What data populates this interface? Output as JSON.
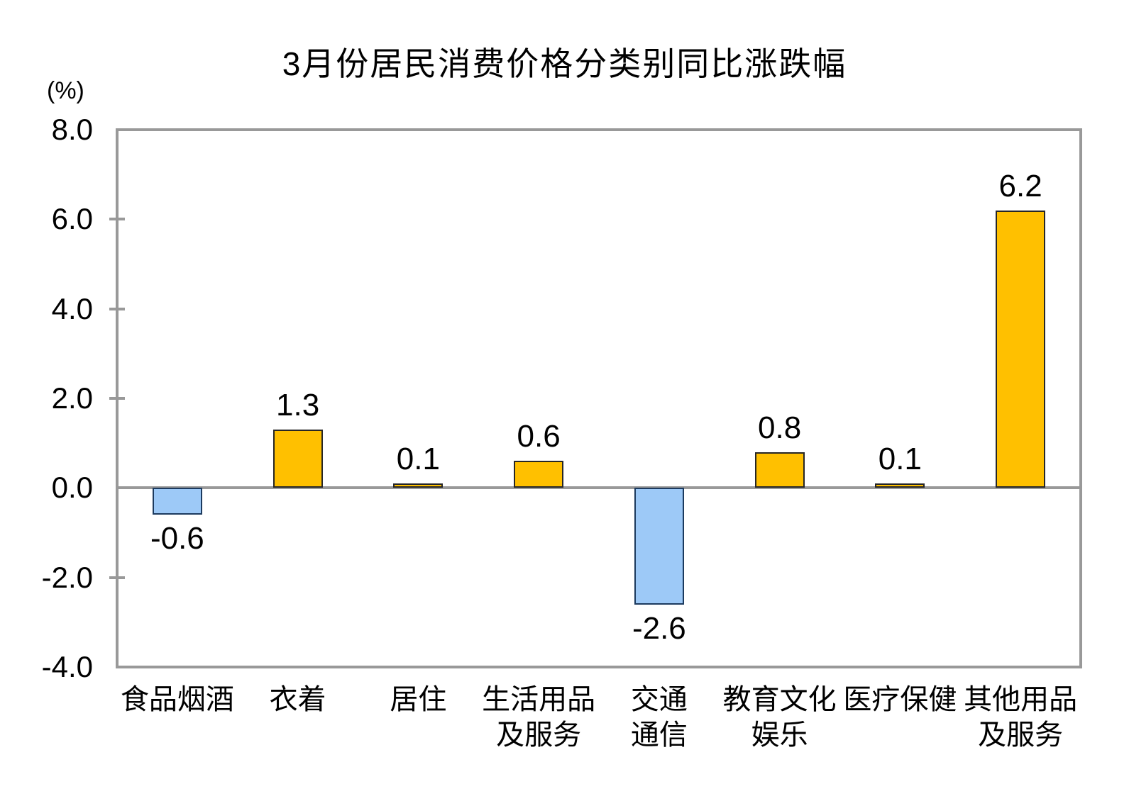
{
  "page": {
    "background": "#ffffff"
  },
  "chart_data": {
    "type": "bar",
    "title": "3月份居民消费价格分类别同比涨跌幅",
    "y_unit_label": "(%)",
    "categories": [
      "食品烟酒",
      "衣着",
      "居住",
      "生活用品\n及服务",
      "交通\n通信",
      "教育文化\n娱乐",
      "医疗保健",
      "其他用品\n及服务"
    ],
    "values": [
      -0.6,
      1.3,
      0.1,
      0.6,
      -2.6,
      0.8,
      0.1,
      6.2
    ],
    "value_labels": [
      "-0.6",
      "1.3",
      "0.1",
      "0.6",
      "-2.6",
      "0.8",
      "0.1",
      "6.2"
    ],
    "ylim": [
      -4.0,
      8.0
    ],
    "ytick_values": [
      8,
      6,
      4,
      2,
      0,
      -2,
      -4
    ],
    "ytick_labels": [
      "8.0",
      "6.0",
      "4.0",
      "2.0",
      "0.0",
      "-2.0",
      "-4.0"
    ],
    "grid": "zero-baseline-only",
    "legend": "none",
    "colors": {
      "positive_fill": "#FFC000",
      "positive_border": "#262626",
      "negative_fill": "#9DC9F7",
      "negative_border": "#1C3A5E",
      "axis": "#999999",
      "text": "#000000"
    }
  }
}
